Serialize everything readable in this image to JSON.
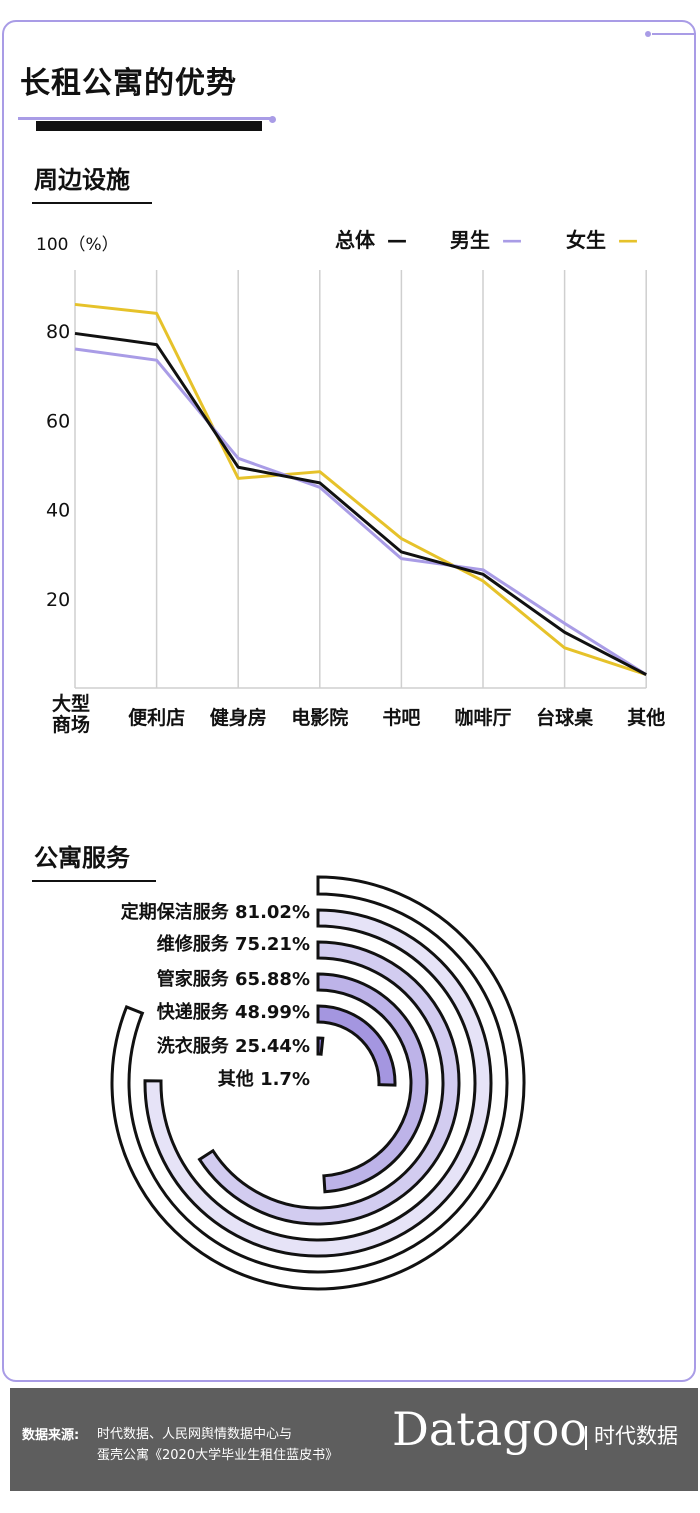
{
  "header": {
    "title": "长租公寓的优势"
  },
  "colors": {
    "overall": "#111111",
    "male": "#a99ce6",
    "female": "#e6c22a",
    "accent": "#a99ce6"
  },
  "section1": {
    "title": "周边设施"
  },
  "section2": {
    "title": "公寓服务"
  },
  "chart_data": [
    {
      "type": "line",
      "ylabel": "100（%）",
      "yticks": [
        20,
        40,
        60,
        80
      ],
      "ylim": [
        0,
        100
      ],
      "grid": "vertical",
      "legend_position": "top-right",
      "categories": [
        "大型商场",
        "便利店",
        "健身房",
        "电影院",
        "书吧",
        "咖啡厅",
        "台球桌",
        "其他"
      ],
      "category_lines": [
        [
          "大型",
          "商场"
        ],
        [
          "便利店"
        ],
        [
          "健身房"
        ],
        [
          "电影院"
        ],
        [
          "书吧"
        ],
        [
          "咖啡厅"
        ],
        [
          "台球桌"
        ],
        [
          "其他"
        ]
      ],
      "series": [
        {
          "name": "总体",
          "symbol": "—",
          "values": [
            79.5,
            77,
            49.5,
            46,
            30.5,
            25.5,
            12.5,
            3
          ]
        },
        {
          "name": "男生",
          "symbol": "—",
          "values": [
            76,
            73.5,
            51.5,
            45,
            29,
            26.5,
            14.5,
            3
          ]
        },
        {
          "name": "女生",
          "symbol": "—",
          "values": [
            86,
            84,
            47,
            48.5,
            33.5,
            24,
            9,
            3
          ]
        }
      ]
    },
    {
      "type": "bar",
      "subtype": "radial",
      "categories": [
        "定期保洁服务",
        "维修服务",
        "管家服务",
        "快递服务",
        "洗衣服务",
        "其他"
      ],
      "values": [
        81.02,
        75.21,
        65.88,
        48.99,
        25.44,
        1.7
      ],
      "labels": [
        "定期保洁服务 81.02%",
        "维修服务 75.21%",
        "管家服务 65.88%",
        "快递服务 48.99%",
        "洗衣服务 25.44%",
        "其他 1.7%"
      ],
      "fills": [
        "#ffffff",
        "#e6e3f7",
        "#d2ccf0",
        "#bdb3e8",
        "#a496e0",
        "#8a7ad6"
      ]
    }
  ],
  "footer": {
    "source_label": "数据来源:",
    "source_line1": "时代数据、人民网舆情数据中心与",
    "source_line2": "蛋壳公寓《2020大学毕业生租住蓝皮书》",
    "logo": "Datagoo",
    "logo_cn": "时代数据"
  }
}
